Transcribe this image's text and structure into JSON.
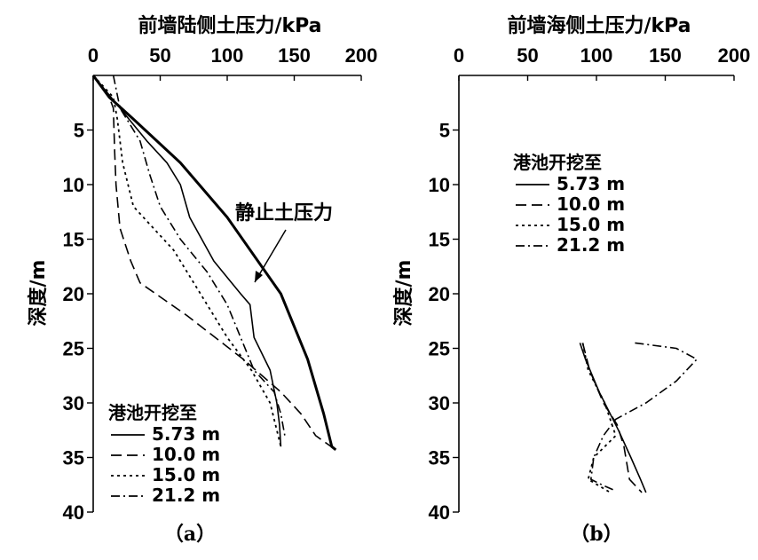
{
  "chart_data": [
    {
      "type": "line",
      "panel_label": "（a）",
      "title": "前墙陆侧土压力/kPa",
      "xlabel": "前墙陆侧土压力/kPa",
      "ylabel": "深度/m",
      "xlim": [
        0,
        200
      ],
      "ylim": [
        0,
        40
      ],
      "y_inverted": true,
      "x_ticks": [
        "0",
        "50",
        "100",
        "150",
        "200"
      ],
      "y_ticks": [
        "5",
        "10",
        "15",
        "20",
        "25",
        "30",
        "35",
        "40"
      ],
      "legend_title": "港池开挖至",
      "legend_position": "bottom-left",
      "annotation": "静止土压力",
      "series": [
        {
          "name": "静止土压力",
          "style": "solid-thick",
          "points": [
            [
              0,
              0
            ],
            [
              12,
              2
            ],
            [
              30,
              4
            ],
            [
              65,
              8
            ],
            [
              100,
              13
            ],
            [
              140,
              20
            ],
            [
              160,
              26
            ],
            [
              172,
              31
            ],
            [
              178,
              34
            ],
            [
              181,
              34.3
            ]
          ]
        },
        {
          "name": "5.73 m",
          "style": "solid",
          "points": [
            [
              0,
              0
            ],
            [
              20,
              3
            ],
            [
              40,
              6
            ],
            [
              55,
              8
            ],
            [
              65,
              10
            ],
            [
              72,
              13
            ],
            [
              90,
              17
            ],
            [
              100,
              18.5
            ],
            [
              110,
              20
            ],
            [
              117,
              21
            ],
            [
              120,
              24
            ],
            [
              132,
              27
            ],
            [
              137,
              30
            ],
            [
              139,
              32
            ],
            [
              140,
              34
            ]
          ]
        },
        {
          "name": "10.0 m",
          "style": "dash",
          "points": [
            [
              0,
              0
            ],
            [
              12,
              2
            ],
            [
              15,
              3
            ],
            [
              16,
              7
            ],
            [
              17,
              10
            ],
            [
              20,
              14
            ],
            [
              28,
              17
            ],
            [
              35,
              19
            ],
            [
              70,
              22
            ],
            [
              112,
              26
            ],
            [
              140,
              29
            ],
            [
              155,
              31
            ],
            [
              166,
              33
            ],
            [
              181,
              34.3
            ]
          ]
        },
        {
          "name": "15.0 m",
          "style": "dot",
          "points": [
            [
              0,
              0
            ],
            [
              15,
              2
            ],
            [
              18,
              4
            ],
            [
              22,
              8
            ],
            [
              30,
              12
            ],
            [
              45,
              14
            ],
            [
              60,
              16
            ],
            [
              75,
              19
            ],
            [
              90,
              22
            ],
            [
              100,
              24
            ],
            [
              118,
              27
            ],
            [
              132,
              30
            ],
            [
              138,
              33
            ],
            [
              140,
              34
            ]
          ]
        },
        {
          "name": "21.2 m",
          "style": "dashdot",
          "points": [
            [
              15,
              0
            ],
            [
              20,
              3
            ],
            [
              25,
              4
            ],
            [
              35,
              6
            ],
            [
              42,
              9
            ],
            [
              50,
              12
            ],
            [
              65,
              15
            ],
            [
              85,
              18
            ],
            [
              100,
              21
            ],
            [
              110,
              24
            ],
            [
              120,
              27
            ],
            [
              135,
              29
            ],
            [
              140,
              31
            ],
            [
              143,
              33
            ]
          ]
        }
      ]
    },
    {
      "type": "line",
      "panel_label": "（b）",
      "title": "前墙海侧土压力/kPa",
      "xlabel": "前墙海侧土压力/kPa",
      "ylabel": "深度/m",
      "xlim": [
        0,
        200
      ],
      "ylim": [
        0,
        40
      ],
      "y_inverted": true,
      "x_ticks": [
        "0",
        "50",
        "100",
        "150",
        "200"
      ],
      "y_ticks": [
        "5",
        "10",
        "15",
        "20",
        "25",
        "30",
        "35",
        "40"
      ],
      "legend_title": "港池开挖至",
      "legend_position": "top-left",
      "series": [
        {
          "name": "5.73 m",
          "style": "solid",
          "points": [
            [
              88,
              24.5
            ],
            [
              92,
              26
            ],
            [
              102,
              29
            ],
            [
              116,
              32.5
            ],
            [
              125,
              35
            ],
            [
              132,
              37
            ],
            [
              136,
              38.2
            ]
          ]
        },
        {
          "name": "10.0 m",
          "style": "dash",
          "points": [
            [
              90,
              24.5
            ],
            [
              95,
              27
            ],
            [
              105,
              30
            ],
            [
              115,
              32
            ],
            [
              120,
              34
            ],
            [
              124,
              37
            ],
            [
              133,
              38.2
            ]
          ]
        },
        {
          "name": "15.0 m",
          "style": "dot",
          "points": [
            [
              90,
              24.5
            ],
            [
              94,
              27
            ],
            [
              106,
              30
            ],
            [
              114,
              33
            ],
            [
              98,
              35
            ],
            [
              94,
              37
            ],
            [
              110,
              38.2
            ]
          ]
        },
        {
          "name": "21.2 m",
          "style": "dashdot",
          "points": [
            [
              128,
              24.5
            ],
            [
              158,
              25
            ],
            [
              173,
              26
            ],
            [
              158,
              28
            ],
            [
              136,
              30
            ],
            [
              114,
              31.5
            ],
            [
              105,
              33
            ],
            [
              98,
              35
            ],
            [
              96,
              37
            ],
            [
              104,
              37.5
            ],
            [
              113,
              38
            ]
          ]
        }
      ]
    }
  ]
}
